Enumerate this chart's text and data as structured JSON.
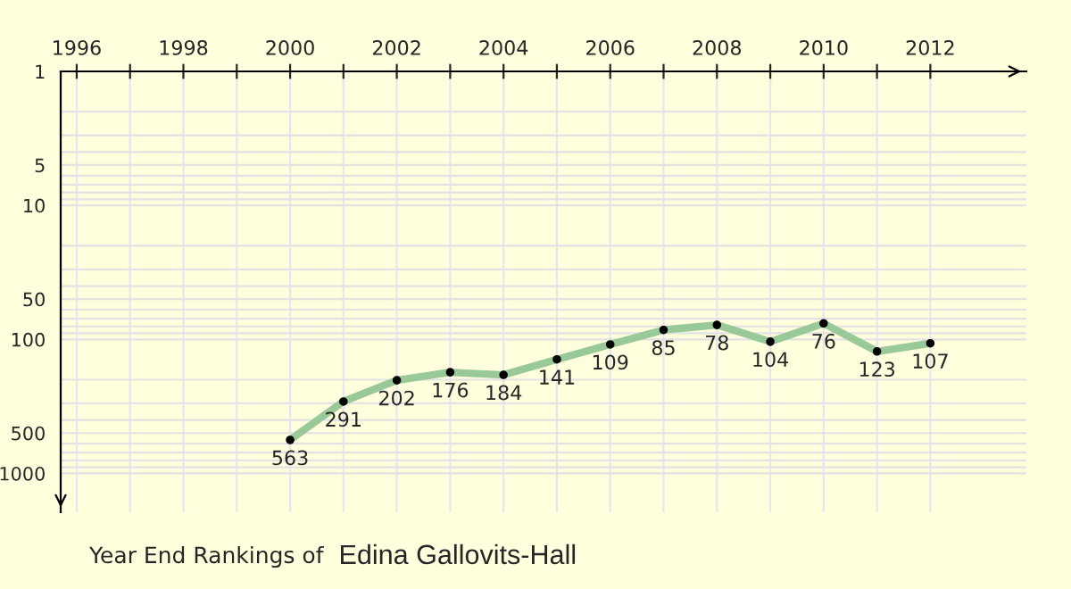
{
  "chart_data": {
    "type": "line",
    "title": "Year End Rankings of",
    "subtitle": "Edina Gallovits-Hall",
    "x": [
      2000,
      2001,
      2002,
      2003,
      2004,
      2005,
      2006,
      2007,
      2008,
      2009,
      2010,
      2011,
      2012
    ],
    "series": [
      {
        "color": "#99c899",
        "values": [
          563,
          291,
          202,
          176,
          184,
          141,
          109,
          85,
          78,
          104,
          76,
          123,
          107
        ]
      }
    ],
    "data_labels": true,
    "marker": "circle",
    "log": "y",
    "xlim": [
      1995.7,
      2013.8
    ],
    "xticks": [
      1996,
      {
        "value": 1997,
        "label": null
      },
      1998,
      {
        "value": 1999,
        "label": null
      },
      2000,
      {
        "value": 2001,
        "label": null
      },
      2002,
      {
        "value": 2003,
        "label": null
      },
      2004,
      {
        "value": 2005,
        "label": null
      },
      2006,
      {
        "value": 2007,
        "label": null
      },
      2008,
      {
        "value": 2009,
        "label": null
      },
      2010,
      {
        "value": 2011,
        "label": null
      },
      2012
    ],
    "ylim": [
      1950,
      1
    ],
    "yticks": [
      1,
      {
        "value": 2,
        "label": null
      },
      {
        "value": 3,
        "label": null
      },
      {
        "value": 4,
        "label": null
      },
      5,
      {
        "value": 6,
        "label": null
      },
      {
        "value": 7,
        "label": null
      },
      {
        "value": 8,
        "label": null
      },
      {
        "value": 9,
        "label": null
      },
      10,
      {
        "value": 20,
        "label": null
      },
      {
        "value": 30,
        "label": null
      },
      {
        "value": 40,
        "label": null
      },
      50,
      {
        "value": 60,
        "label": null
      },
      {
        "value": 70,
        "label": null
      },
      {
        "value": 80,
        "label": null
      },
      {
        "value": 90,
        "label": null
      },
      100,
      {
        "value": 200,
        "label": null
      },
      {
        "value": 300,
        "label": null
      },
      {
        "value": 400,
        "label": null
      },
      500,
      {
        "value": 600,
        "label": null
      },
      {
        "value": 700,
        "label": null
      },
      {
        "value": 800,
        "label": null
      },
      {
        "value": 900,
        "label": null
      },
      1000
    ],
    "grid": true
  }
}
